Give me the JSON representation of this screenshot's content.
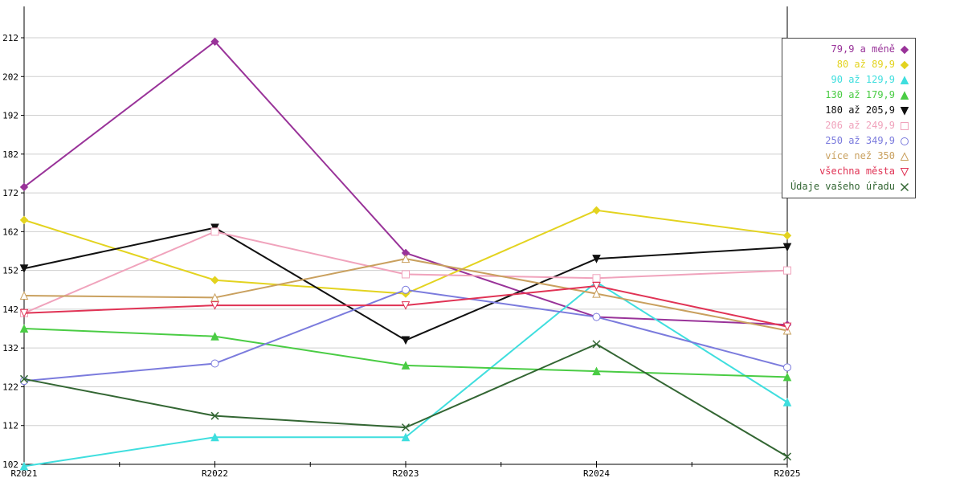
{
  "chart_data": {
    "type": "line",
    "title": "",
    "xlabel": "",
    "ylabel": "",
    "categories": [
      "R2021",
      "R2022",
      "R2023",
      "R2024",
      "R2025"
    ],
    "y_ticks": [
      102,
      112,
      122,
      132,
      142,
      152,
      162,
      172,
      182,
      192,
      202,
      212
    ],
    "ylim": [
      102,
      212
    ],
    "grid": "horizontal",
    "legend_position": "top-right",
    "colors": {
      "background": "#ffffff",
      "axis": "#000000",
      "gridline": "#cfcfcf",
      "legend_border": "#444444"
    },
    "series": [
      {
        "name": "79,9 a méně",
        "color": "#993399",
        "marker": "diamond",
        "fill": "filled",
        "values": [
          173.5,
          211,
          156.5,
          140,
          138
        ]
      },
      {
        "name": "80 až 89,9",
        "color": "#e3d31f",
        "marker": "diamond",
        "fill": "filled",
        "values": [
          165,
          149.5,
          146,
          167.5,
          161
        ]
      },
      {
        "name": "90 až 129,9",
        "color": "#3fdede",
        "marker": "triangle-up",
        "fill": "filled",
        "values": [
          101.5,
          109,
          109,
          149,
          118
        ]
      },
      {
        "name": "130 až 179,9",
        "color": "#4acc44",
        "marker": "triangle-up",
        "fill": "filled",
        "values": [
          137,
          135,
          127.5,
          126,
          124.5
        ]
      },
      {
        "name": "180 až 205,9",
        "color": "#111111",
        "marker": "triangle-down",
        "fill": "filled",
        "values": [
          152.5,
          163,
          134,
          155,
          158
        ]
      },
      {
        "name": "206 až 249,9",
        "color": "#f0a3bc",
        "marker": "square",
        "fill": "open",
        "values": [
          141,
          162,
          151,
          150,
          152
        ]
      },
      {
        "name": "250 až 349,9",
        "color": "#7b7bdd",
        "marker": "circle",
        "fill": "open",
        "values": [
          123.5,
          128,
          147,
          140,
          127
        ]
      },
      {
        "name": "více než 350",
        "color": "#c9a05e",
        "marker": "triangle-up",
        "fill": "open",
        "values": [
          145.5,
          145,
          155,
          146,
          136.5
        ]
      },
      {
        "name": "všechna města",
        "color": "#e03355",
        "marker": "triangle-down",
        "fill": "open",
        "values": [
          141,
          143,
          143,
          148,
          137.5
        ]
      },
      {
        "name": "Údaje vašeho úřadu",
        "color": "#336633",
        "marker": "x-cross",
        "fill": "stroke",
        "values": [
          124,
          114.5,
          111.5,
          133,
          104
        ]
      }
    ]
  }
}
